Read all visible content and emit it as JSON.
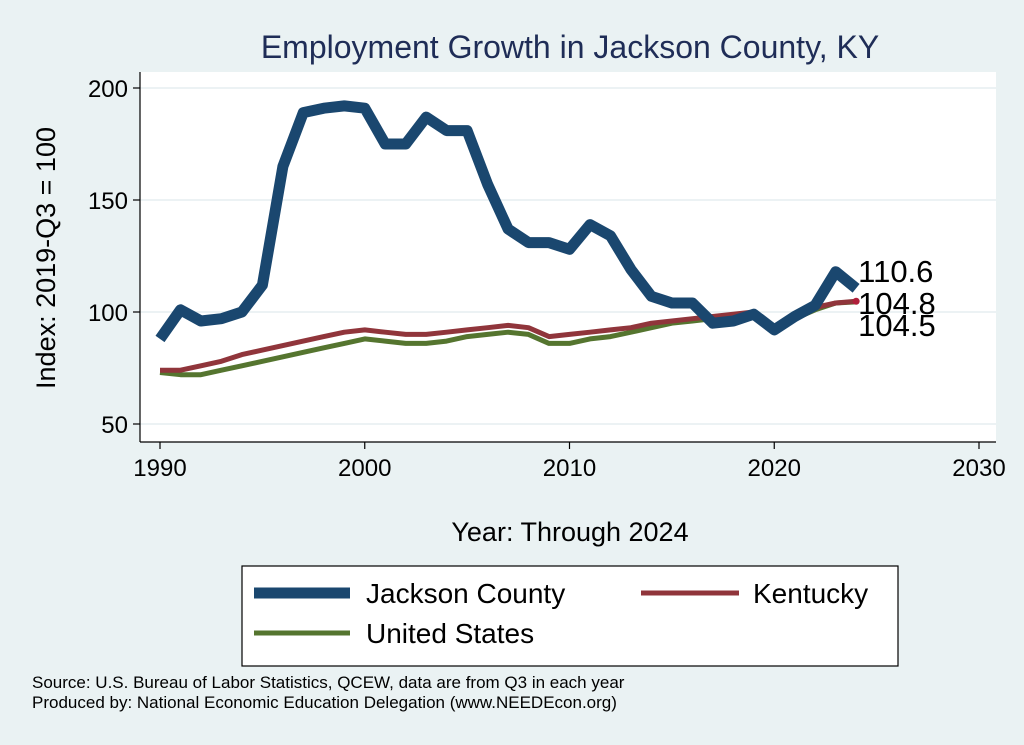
{
  "chart_data": {
    "type": "line",
    "title": "Employment Growth in Jackson County, KY",
    "xlabel": "Year: Through 2024",
    "ylabel": "Index: 2019-Q3 = 100",
    "xlim": [
      1990,
      2030
    ],
    "ylim": [
      50,
      200
    ],
    "x_ticks": [
      1990,
      2000,
      2010,
      2020,
      2030
    ],
    "y_ticks": [
      50,
      100,
      150,
      200
    ],
    "grid": true,
    "legend_position": "bottom",
    "x": [
      1990,
      1991,
      1992,
      1993,
      1994,
      1995,
      1996,
      1997,
      1998,
      1999,
      2000,
      2001,
      2002,
      2003,
      2004,
      2005,
      2006,
      2007,
      2008,
      2009,
      2010,
      2011,
      2012,
      2013,
      2014,
      2015,
      2016,
      2017,
      2018,
      2019,
      2020,
      2021,
      2022,
      2023,
      2024
    ],
    "series": [
      {
        "name": "Jackson  County",
        "color": "#1a476f",
        "values": [
          88,
          101,
          96,
          97,
          100,
          112,
          165,
          189,
          191,
          192,
          191,
          175,
          175,
          187,
          181,
          181,
          157,
          137,
          131,
          131,
          128,
          139,
          134,
          119,
          107,
          104,
          104,
          95,
          96,
          99,
          92,
          98,
          103,
          118,
          110.6
        ],
        "end_label": "110.6"
      },
      {
        "name": "Kentucky",
        "color": "#90353b",
        "values": [
          74,
          74,
          76,
          78,
          81,
          83,
          85,
          87,
          89,
          91,
          92,
          91,
          90,
          90,
          91,
          92,
          93,
          94,
          93,
          89,
          90,
          91,
          92,
          93,
          95,
          96,
          97,
          98,
          99,
          100,
          93,
          98,
          102,
          104,
          104.8
        ],
        "end_label": "104.8"
      },
      {
        "name": "United States",
        "color": "#55752f",
        "values": [
          73,
          72,
          72,
          74,
          76,
          78,
          80,
          82,
          84,
          86,
          88,
          87,
          86,
          86,
          87,
          89,
          90,
          91,
          90,
          86,
          86,
          88,
          89,
          91,
          93,
          95,
          96,
          97,
          98,
          100,
          93,
          97,
          101,
          104,
          104.5
        ],
        "end_label": "104.5"
      }
    ]
  },
  "notes": {
    "source": "Source: U.S. Bureau of Labor Statistics, QCEW, data are from Q3 in each year",
    "produced_by": "Produced by: National Economic Education Delegation (www.NEEDEcon.org)"
  }
}
